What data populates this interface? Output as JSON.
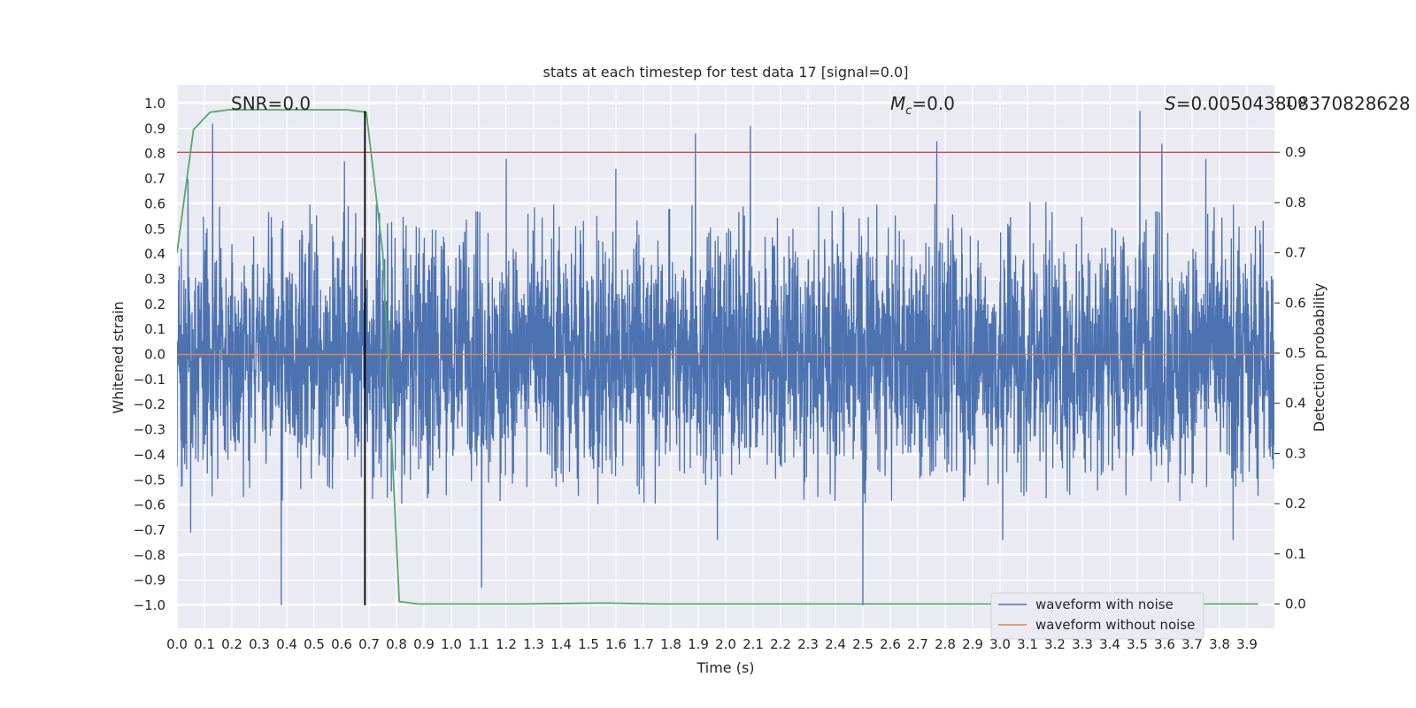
{
  "chart_data": {
    "type": "line",
    "title": "stats at each timestep for test data 17 [signal=0.0]",
    "xlabel": "Time (s)",
    "ylabel_left": "Whitened strain",
    "ylabel_right": "Detection probability",
    "xlim": [
      0.0,
      4.0
    ],
    "ylim_left": [
      -1.1,
      1.1
    ],
    "ylim_right": [
      -0.05,
      1.0
    ],
    "x_ticks": [
      "0.0",
      "0.1",
      "0.2",
      "0.3",
      "0.4",
      "0.5",
      "0.6",
      "0.7",
      "0.8",
      "0.9",
      "1.0",
      "1.1",
      "1.2",
      "1.3",
      "1.4",
      "1.5",
      "1.6",
      "1.7",
      "1.8",
      "1.9",
      "2.0",
      "2.1",
      "2.2",
      "2.3",
      "2.4",
      "2.5",
      "2.6",
      "2.7",
      "2.8",
      "2.9",
      "3.0",
      "3.1",
      "3.2",
      "3.3",
      "3.4",
      "3.5",
      "3.6",
      "3.7",
      "3.8",
      "3.9"
    ],
    "y_ticks_left": [
      "1.0",
      "0.9",
      "0.8",
      "0.7",
      "0.6",
      "0.5",
      "0.4",
      "0.3",
      "0.2",
      "0.1",
      "0.0",
      "−0.1",
      "−0.2",
      "−0.3",
      "−0.4",
      "−0.5",
      "−0.6",
      "−0.7",
      "−0.8",
      "−0.9",
      "−1.0"
    ],
    "y_ticks_right": [
      "1.0",
      "0.9",
      "0.8",
      "0.7",
      "0.6",
      "0.5",
      "0.4",
      "0.3",
      "0.2",
      "0.1",
      "0.0"
    ],
    "annotations": {
      "snr_prefix": "SNR=",
      "snr_value": "0.0",
      "mc_symbol": "M",
      "mc_sub": "c",
      "mc_value": "=0.0",
      "s_symbol": "S",
      "s_value": "=0.005043808370828628"
    },
    "series": [
      {
        "name": "waveform with noise",
        "axis": "left",
        "color": "#4c72b0",
        "description": "dense noise trace, roughly uniform between -0.45 and 0.45 with spikes",
        "spikes": [
          {
            "x": 0.38,
            "y": -1.0
          },
          {
            "x": 0.13,
            "y": 0.92
          },
          {
            "x": 1.89,
            "y": 0.88
          },
          {
            "x": 2.09,
            "y": 0.91
          },
          {
            "x": 2.77,
            "y": 0.85
          },
          {
            "x": 3.51,
            "y": 0.97
          },
          {
            "x": 3.59,
            "y": 0.84
          },
          {
            "x": 2.5,
            "y": -1.0
          },
          {
            "x": 1.11,
            "y": -0.93
          },
          {
            "x": 1.2,
            "y": 0.78
          },
          {
            "x": 0.61,
            "y": 0.77
          },
          {
            "x": 3.75,
            "y": 0.78
          },
          {
            "x": 0.05,
            "y": -0.71
          },
          {
            "x": 1.97,
            "y": -0.74
          },
          {
            "x": 3.01,
            "y": -0.74
          },
          {
            "x": 3.85,
            "y": -0.74
          },
          {
            "x": 1.6,
            "y": 0.74
          },
          {
            "x": 0.04,
            "y": 0.7
          }
        ]
      },
      {
        "name": "waveform without noise",
        "axis": "left",
        "color": "#dd8452",
        "x": [
          0.0,
          4.0
        ],
        "y": [
          0.0,
          0.0
        ]
      },
      {
        "name": "detection probability",
        "axis": "right",
        "color": "#55a868",
        "x": [
          0.0,
          0.06,
          0.12,
          0.19,
          0.25,
          0.31,
          0.38,
          0.44,
          0.5,
          0.56,
          0.62,
          0.69,
          0.75,
          0.81,
          0.88,
          1.0,
          1.25,
          1.56,
          1.75,
          2.0,
          2.5,
          3.0,
          3.5,
          3.94
        ],
        "y": [
          0.7,
          0.945,
          0.98,
          0.985,
          0.985,
          0.985,
          0.985,
          0.985,
          0.985,
          0.985,
          0.985,
          0.98,
          0.7,
          0.005,
          0.0,
          0.0,
          0.0,
          0.002,
          0.0,
          0.0,
          0.0,
          0.0,
          0.0,
          0.0
        ]
      }
    ],
    "hlines": [
      {
        "axis": "right",
        "y": 0.9,
        "color": "#c44e52"
      }
    ],
    "vlines": [
      {
        "x": 0.685,
        "y_from": -1.0,
        "y_to": 0.97,
        "color": "#000000"
      }
    ],
    "legend": {
      "placement": "lower-right",
      "entries": [
        {
          "label": "waveform with noise",
          "color": "#4c72b0"
        },
        {
          "label": "waveform without noise",
          "color": "#dd8452"
        }
      ]
    },
    "grid": true,
    "style": {
      "axes_background": "#eaeaf2",
      "grid_color": "#ffffff"
    }
  }
}
